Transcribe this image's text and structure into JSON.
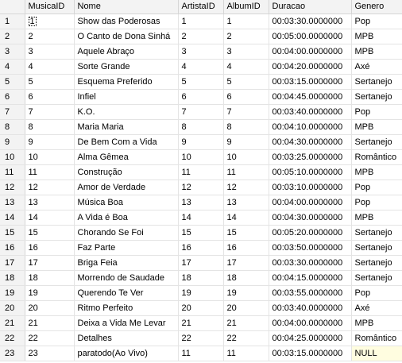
{
  "results": {
    "columns": [
      "MusicaID",
      "Nome",
      "ArtistaID",
      "AlbumID",
      "Duracao",
      "Genero"
    ],
    "rows": [
      {
        "n": "1",
        "cells": [
          "1",
          "Show das Poderosas",
          "1",
          "1",
          "00:03:30.0000000",
          "Pop"
        ]
      },
      {
        "n": "2",
        "cells": [
          "2",
          "O Canto de Dona Sinhá",
          "2",
          "2",
          "00:05:00.0000000",
          "MPB"
        ]
      },
      {
        "n": "3",
        "cells": [
          "3",
          "Aquele Abraço",
          "3",
          "3",
          "00:04:00.0000000",
          "MPB"
        ]
      },
      {
        "n": "4",
        "cells": [
          "4",
          "Sorte Grande",
          "4",
          "4",
          "00:04:20.0000000",
          "Axé"
        ]
      },
      {
        "n": "5",
        "cells": [
          "5",
          "Esquema Preferido",
          "5",
          "5",
          "00:03:15.0000000",
          "Sertanejo"
        ]
      },
      {
        "n": "6",
        "cells": [
          "6",
          "Infiel",
          "6",
          "6",
          "00:04:45.0000000",
          "Sertanejo"
        ]
      },
      {
        "n": "7",
        "cells": [
          "7",
          "K.O.",
          "7",
          "7",
          "00:03:40.0000000",
          "Pop"
        ]
      },
      {
        "n": "8",
        "cells": [
          "8",
          "Maria Maria",
          "8",
          "8",
          "00:04:10.0000000",
          "MPB"
        ]
      },
      {
        "n": "9",
        "cells": [
          "9",
          "De Bem Com a Vida",
          "9",
          "9",
          "00:04:30.0000000",
          "Sertanejo"
        ]
      },
      {
        "n": "10",
        "cells": [
          "10",
          "Alma Gêmea",
          "10",
          "10",
          "00:03:25.0000000",
          "Romântico"
        ]
      },
      {
        "n": "11",
        "cells": [
          "11",
          "Construção",
          "11",
          "11",
          "00:05:10.0000000",
          "MPB"
        ]
      },
      {
        "n": "12",
        "cells": [
          "12",
          "Amor de Verdade",
          "12",
          "12",
          "00:03:10.0000000",
          "Pop"
        ]
      },
      {
        "n": "13",
        "cells": [
          "13",
          "Música Boa",
          "13",
          "13",
          "00:04:00.0000000",
          "Pop"
        ]
      },
      {
        "n": "14",
        "cells": [
          "14",
          "A Vida é Boa",
          "14",
          "14",
          "00:04:30.0000000",
          "MPB"
        ]
      },
      {
        "n": "15",
        "cells": [
          "15",
          "Chorando Se Foi",
          "15",
          "15",
          "00:05:20.0000000",
          "Sertanejo"
        ]
      },
      {
        "n": "16",
        "cells": [
          "16",
          "Faz Parte",
          "16",
          "16",
          "00:03:50.0000000",
          "Sertanejo"
        ]
      },
      {
        "n": "17",
        "cells": [
          "17",
          "Briga Feia",
          "17",
          "17",
          "00:03:30.0000000",
          "Sertanejo"
        ]
      },
      {
        "n": "18",
        "cells": [
          "18",
          "Morrendo de Saudade",
          "18",
          "18",
          "00:04:15.0000000",
          "Sertanejo"
        ]
      },
      {
        "n": "19",
        "cells": [
          "19",
          "Querendo Te Ver",
          "19",
          "19",
          "00:03:55.0000000",
          "Pop"
        ]
      },
      {
        "n": "20",
        "cells": [
          "20",
          "Ritmo Perfeito",
          "20",
          "20",
          "00:03:40.0000000",
          "Axé"
        ]
      },
      {
        "n": "21",
        "cells": [
          "21",
          "Deixa a Vida Me Levar",
          "21",
          "21",
          "00:04:00.0000000",
          "MPB"
        ]
      },
      {
        "n": "22",
        "cells": [
          "22",
          "Detalhes",
          "22",
          "22",
          "00:04:25.0000000",
          "Romântico"
        ]
      },
      {
        "n": "23",
        "cells": [
          "23",
          "paratodo(Ao Vivo)",
          "11",
          "11",
          "00:03:15.0000000",
          "NULL"
        ]
      }
    ]
  }
}
